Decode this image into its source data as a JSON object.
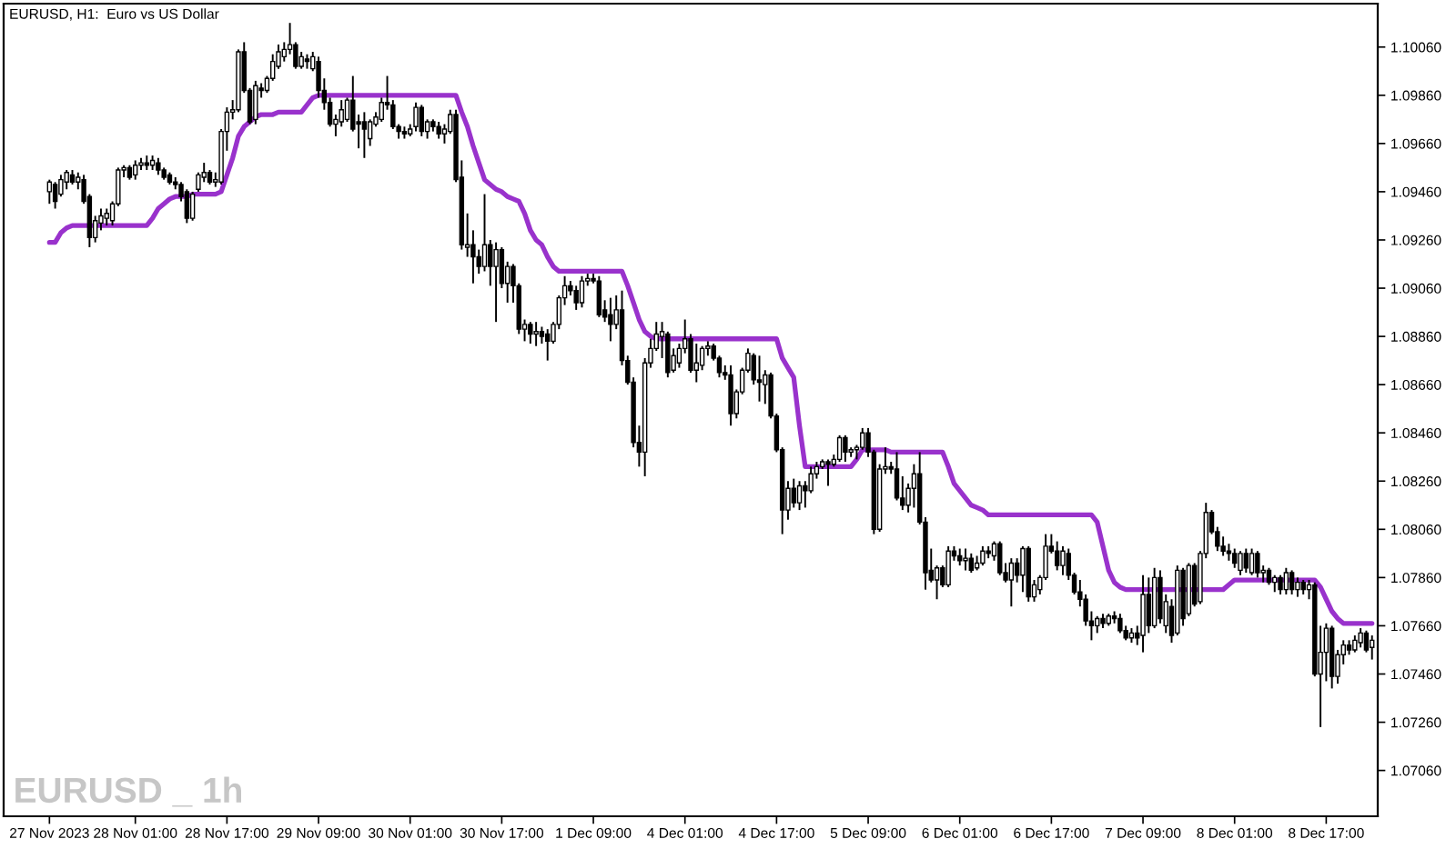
{
  "chart_data": {
    "type": "candlestick",
    "title": "EURUSD, H1:  Euro vs US Dollar",
    "annotations": [
      "EURUSD _ 1h"
    ],
    "categories": [
      "27 Nov 2023",
      null,
      null,
      null,
      null,
      null,
      null,
      null,
      null,
      null,
      null,
      null,
      null,
      null,
      null,
      "28 Nov 01:00",
      null,
      null,
      null,
      null,
      null,
      null,
      null,
      null,
      null,
      null,
      null,
      null,
      null,
      null,
      null,
      "28 Nov 17:00",
      null,
      null,
      null,
      null,
      null,
      null,
      null,
      null,
      null,
      null,
      null,
      null,
      null,
      null,
      null,
      "29 Nov 09:00",
      null,
      null,
      null,
      null,
      null,
      null,
      null,
      null,
      null,
      null,
      null,
      null,
      null,
      null,
      null,
      "30 Nov 01:00",
      null,
      null,
      null,
      null,
      null,
      null,
      null,
      null,
      null,
      null,
      null,
      null,
      null,
      null,
      null,
      "30 Nov 17:00",
      null,
      null,
      null,
      null,
      null,
      null,
      null,
      null,
      null,
      null,
      null,
      null,
      null,
      null,
      null,
      "1 Dec 09:00",
      null,
      null,
      null,
      null,
      null,
      null,
      null,
      null,
      null,
      null,
      null,
      null,
      null,
      null,
      null,
      "4 Dec 01:00",
      null,
      null,
      null,
      null,
      null,
      null,
      null,
      null,
      null,
      null,
      null,
      null,
      null,
      null,
      null,
      "4 Dec 17:00",
      null,
      null,
      null,
      null,
      null,
      null,
      null,
      null,
      null,
      null,
      null,
      null,
      null,
      null,
      null,
      "5 Dec 09:00",
      null,
      null,
      null,
      null,
      null,
      null,
      null,
      null,
      null,
      null,
      null,
      null,
      null,
      null,
      null,
      "6 Dec 01:00",
      null,
      null,
      null,
      null,
      null,
      null,
      null,
      null,
      null,
      null,
      null,
      null,
      null,
      null,
      null,
      "6 Dec 17:00",
      null,
      null,
      null,
      null,
      null,
      null,
      null,
      null,
      null,
      null,
      null,
      null,
      null,
      null,
      null,
      "7 Dec 09:00",
      null,
      null,
      null,
      null,
      null,
      null,
      null,
      null,
      null,
      null,
      null,
      null,
      null,
      null,
      null,
      "8 Dec 01:00",
      null,
      null,
      null,
      null,
      null,
      null,
      null,
      null,
      null,
      null,
      null,
      null,
      null,
      null,
      null,
      "8 Dec 17:00",
      null,
      null,
      null,
      null,
      null,
      null,
      null,
      null
    ],
    "ohlc": [
      [
        1.0946,
        1.0951,
        1.0941,
        1.095
      ],
      [
        1.0949,
        1.095,
        1.0939,
        1.0942
      ],
      [
        1.0945,
        1.0953,
        1.0944,
        1.0951
      ],
      [
        1.095,
        1.0955,
        1.0947,
        1.0954
      ],
      [
        1.0953,
        1.0955,
        1.0949,
        1.095
      ],
      [
        1.095,
        1.0954,
        1.0947,
        1.0952
      ],
      [
        1.0951,
        1.0953,
        1.0941,
        1.0942
      ],
      [
        1.0944,
        1.0945,
        1.0923,
        1.0927
      ],
      [
        1.0927,
        1.0936,
        1.0925,
        1.0934
      ],
      [
        1.0933,
        1.0939,
        1.093,
        1.0936
      ],
      [
        1.0935,
        1.0939,
        1.0932,
        1.0937
      ],
      [
        1.0934,
        1.0942,
        1.0932,
        1.0941
      ],
      [
        1.0941,
        1.0956,
        1.094,
        1.0955
      ],
      [
        1.0955,
        1.0957,
        1.0952,
        1.0956
      ],
      [
        1.0956,
        1.0957,
        1.0951,
        1.0952
      ],
      [
        1.0953,
        1.0959,
        1.0951,
        1.0957
      ],
      [
        1.0957,
        1.096,
        1.0955,
        1.0958
      ],
      [
        1.0958,
        1.0961,
        1.0955,
        1.0957
      ],
      [
        1.0957,
        1.0961,
        1.0955,
        1.0959
      ],
      [
        1.0958,
        1.096,
        1.0953,
        1.0955
      ],
      [
        1.0955,
        1.0956,
        1.0951,
        1.0952
      ],
      [
        1.0953,
        1.0954,
        1.0949,
        1.095
      ],
      [
        1.095,
        1.0952,
        1.0947,
        1.0949
      ],
      [
        1.0949,
        1.095,
        1.0942,
        1.0944
      ],
      [
        1.0946,
        1.0947,
        1.0933,
        1.0935
      ],
      [
        1.0935,
        1.0946,
        1.0934,
        1.0945
      ],
      [
        1.0947,
        1.0954,
        1.0946,
        1.0953
      ],
      [
        1.0952,
        1.0958,
        1.095,
        1.0954
      ],
      [
        1.0954,
        1.0955,
        1.0949,
        1.095
      ],
      [
        1.095,
        1.0954,
        1.0948,
        1.0951
      ],
      [
        1.095,
        1.0972,
        1.0949,
        1.0971
      ],
      [
        1.0971,
        1.0981,
        1.0963,
        1.0979
      ],
      [
        1.0979,
        1.0984,
        1.0976,
        1.098
      ],
      [
        1.098,
        1.1005,
        1.0979,
        1.1004
      ],
      [
        1.1004,
        1.1008,
        1.0987,
        1.0988
      ],
      [
        1.0988,
        1.0989,
        1.0974,
        1.0975
      ],
      [
        1.0976,
        1.0992,
        1.0974,
        1.099
      ],
      [
        1.0989,
        1.0991,
        1.0985,
        1.0988
      ],
      [
        1.0988,
        1.0994,
        1.0987,
        1.0993
      ],
      [
        1.0993,
        1.1003,
        1.0992,
        1.1
      ],
      [
        1.0998,
        1.1007,
        1.0997,
        1.1004
      ],
      [
        1.1002,
        1.1008,
        1.1,
        1.1005
      ],
      [
        1.1005,
        1.1016,
        1.1003,
        1.1007
      ],
      [
        1.1007,
        1.1008,
        1.0997,
        1.0998
      ],
      [
        1.0998,
        1.1004,
        1.0997,
        1.1002
      ],
      [
        1.1001,
        1.1003,
        1.0997,
        1.1
      ],
      [
        1.0997,
        1.1004,
        1.0996,
        1.1002
      ],
      [
        1.1,
        1.1002,
        1.0985,
        1.0988
      ],
      [
        1.0988,
        1.0993,
        1.098,
        1.0983
      ],
      [
        1.0983,
        1.0985,
        1.0973,
        1.0974
      ],
      [
        1.0974,
        1.0978,
        1.0969,
        1.0976
      ],
      [
        1.0975,
        1.0984,
        1.0973,
        1.098
      ],
      [
        1.0976,
        1.0985,
        1.0975,
        1.0984
      ],
      [
        1.0984,
        1.0994,
        1.0971,
        1.0972
      ],
      [
        1.0975,
        1.0978,
        1.0964,
        1.0974
      ],
      [
        1.0975,
        1.0979,
        1.096,
        1.0972
      ],
      [
        1.0968,
        1.0976,
        1.0965,
        1.0975
      ],
      [
        1.0974,
        1.0979,
        1.0973,
        1.0977
      ],
      [
        1.0976,
        1.0985,
        1.0975,
        1.0983
      ],
      [
        1.0983,
        1.0994,
        1.098,
        1.0982
      ],
      [
        1.0982,
        1.0984,
        1.0972,
        1.0973
      ],
      [
        1.0973,
        1.0974,
        1.0968,
        1.0971
      ],
      [
        1.0971,
        1.0973,
        1.0968,
        1.097
      ],
      [
        1.097,
        1.0974,
        1.0969,
        1.0972
      ],
      [
        1.0973,
        1.0983,
        1.0971,
        1.0981
      ],
      [
        1.0981,
        1.0982,
        1.0969,
        1.0971
      ],
      [
        1.0971,
        1.0976,
        1.0968,
        1.0975
      ],
      [
        1.0975,
        1.0976,
        1.0971,
        1.0973
      ],
      [
        1.0973,
        1.0975,
        1.0968,
        1.097
      ],
      [
        1.097,
        1.0974,
        1.0966,
        1.0972
      ],
      [
        1.0971,
        1.098,
        1.097,
        1.0978
      ],
      [
        1.0978,
        1.098,
        1.095,
        1.0951
      ],
      [
        1.0952,
        1.0959,
        1.0922,
        1.0924
      ],
      [
        1.0923,
        1.0937,
        1.0919,
        1.0924
      ],
      [
        1.0924,
        1.093,
        1.0908,
        1.0919
      ],
      [
        1.0919,
        1.0922,
        1.0912,
        1.0915
      ],
      [
        1.0915,
        1.0945,
        1.0913,
        1.0924
      ],
      [
        1.0924,
        1.0926,
        1.0907,
        1.0915
      ],
      [
        1.0915,
        1.0925,
        1.0892,
        1.0922
      ],
      [
        1.0922,
        1.0923,
        1.0906,
        1.0908
      ],
      [
        1.0908,
        1.0917,
        1.09,
        1.0915
      ],
      [
        1.0915,
        1.0916,
        1.09,
        1.0907
      ],
      [
        1.0907,
        1.0908,
        1.0887,
        1.0889
      ],
      [
        1.0889,
        1.0893,
        1.0884,
        1.0891
      ],
      [
        1.0891,
        1.0892,
        1.0883,
        1.0887
      ],
      [
        1.0887,
        1.0892,
        1.0882,
        1.0888
      ],
      [
        1.0888,
        1.089,
        1.0883,
        1.0886
      ],
      [
        1.0887,
        1.0889,
        1.0876,
        1.0884
      ],
      [
        1.0884,
        1.0892,
        1.0883,
        1.0891
      ],
      [
        1.0891,
        1.0903,
        1.0889,
        1.0902
      ],
      [
        1.0902,
        1.0911,
        1.0899,
        1.0907
      ],
      [
        1.0907,
        1.0909,
        1.0903,
        1.0905
      ],
      [
        1.0905,
        1.0907,
        1.0897,
        1.09
      ],
      [
        1.09,
        1.0911,
        1.0898,
        1.0909
      ],
      [
        1.0909,
        1.0912,
        1.0907,
        1.091
      ],
      [
        1.091,
        1.0912,
        1.0908,
        1.0909
      ],
      [
        1.0909,
        1.0911,
        1.0894,
        1.0895
      ],
      [
        1.0897,
        1.0901,
        1.0892,
        1.0894
      ],
      [
        1.0895,
        1.0902,
        1.0884,
        1.0891
      ],
      [
        1.0891,
        1.0903,
        1.0889,
        1.0897
      ],
      [
        1.0897,
        1.0905,
        1.0874,
        1.0876
      ],
      [
        1.0876,
        1.0878,
        1.0866,
        1.0867
      ],
      [
        1.0867,
        1.0869,
        1.084,
        1.0842
      ],
      [
        1.0842,
        1.0849,
        1.0832,
        1.0838
      ],
      [
        1.0838,
        1.0877,
        1.0828,
        1.0875
      ],
      [
        1.0875,
        1.0885,
        1.0873,
        1.0881
      ],
      [
        1.0881,
        1.0892,
        1.088,
        1.0887
      ],
      [
        1.0886,
        1.0892,
        1.0877,
        1.0888
      ],
      [
        1.0887,
        1.0888,
        1.0869,
        1.0871
      ],
      [
        1.0872,
        1.0881,
        1.0871,
        1.0878
      ],
      [
        1.0875,
        1.0883,
        1.0873,
        1.0881
      ],
      [
        1.0881,
        1.0893,
        1.0879,
        1.0885
      ],
      [
        1.0885,
        1.0887,
        1.0871,
        1.0872
      ],
      [
        1.0872,
        1.0883,
        1.0867,
        1.0875
      ],
      [
        1.0874,
        1.0882,
        1.0872,
        1.0881
      ],
      [
        1.0881,
        1.0884,
        1.0878,
        1.0882
      ],
      [
        1.0882,
        1.0883,
        1.0876,
        1.0877
      ],
      [
        1.0877,
        1.0878,
        1.0869,
        1.0871
      ],
      [
        1.0871,
        1.0874,
        1.0868,
        1.087
      ],
      [
        1.087,
        1.0874,
        1.0849,
        1.0854
      ],
      [
        1.0854,
        1.0864,
        1.0852,
        1.0863
      ],
      [
        1.0863,
        1.0873,
        1.0862,
        1.0872
      ],
      [
        1.0872,
        1.0881,
        1.0871,
        1.0879
      ],
      [
        1.0878,
        1.0879,
        1.0866,
        1.0868
      ],
      [
        1.0868,
        1.0878,
        1.0859,
        1.0867
      ],
      [
        1.0866,
        1.0872,
        1.0858,
        1.087
      ],
      [
        1.087,
        1.0871,
        1.0852,
        1.0853
      ],
      [
        1.0853,
        1.0854,
        1.0838,
        1.0839
      ],
      [
        1.0839,
        1.084,
        1.0804,
        1.0814
      ],
      [
        1.0814,
        1.0826,
        1.081,
        1.0823
      ],
      [
        1.0823,
        1.0827,
        1.0815,
        1.0817
      ],
      [
        1.0817,
        1.0826,
        1.0814,
        1.0824
      ],
      [
        1.0824,
        1.0826,
        1.0815,
        1.0822
      ],
      [
        1.0822,
        1.0832,
        1.0821,
        1.0829
      ],
      [
        1.0829,
        1.0834,
        1.0827,
        1.0832
      ],
      [
        1.0832,
        1.0835,
        1.0831,
        1.0834
      ],
      [
        1.0834,
        1.0835,
        1.0824,
        1.0833
      ],
      [
        1.0833,
        1.0837,
        1.0832,
        1.0835
      ],
      [
        1.0835,
        1.0845,
        1.0834,
        1.0844
      ],
      [
        1.0844,
        1.0845,
        1.0834,
        1.0838
      ],
      [
        1.0838,
        1.084,
        1.0836,
        1.0839
      ],
      [
        1.0839,
        1.0841,
        1.0835,
        1.084
      ],
      [
        1.084,
        1.0848,
        1.0839,
        1.0846
      ],
      [
        1.0846,
        1.0848,
        1.0836,
        1.0838
      ],
      [
        1.0838,
        1.0839,
        1.0804,
        1.0806
      ],
      [
        1.0806,
        1.0833,
        1.0805,
        1.0831
      ],
      [
        1.0831,
        1.084,
        1.0829,
        1.0832
      ],
      [
        1.0832,
        1.0834,
        1.0829,
        1.0831
      ],
      [
        1.0831,
        1.0838,
        1.0818,
        1.0819
      ],
      [
        1.0819,
        1.0828,
        1.0814,
        1.0816
      ],
      [
        1.0816,
        1.0825,
        1.0813,
        1.0823
      ],
      [
        1.0823,
        1.0833,
        1.0815,
        1.0829
      ],
      [
        1.0829,
        1.0838,
        1.0808,
        1.0809
      ],
      [
        1.0809,
        1.0811,
        1.0781,
        1.0788
      ],
      [
        1.0789,
        1.0798,
        1.0784,
        1.0785
      ],
      [
        1.0785,
        1.0791,
        1.0777,
        1.079
      ],
      [
        1.079,
        1.0791,
        1.0782,
        1.0783
      ],
      [
        1.0783,
        1.0799,
        1.0782,
        1.0797
      ],
      [
        1.0797,
        1.0799,
        1.0793,
        1.0795
      ],
      [
        1.0795,
        1.0798,
        1.0791,
        1.0793
      ],
      [
        1.0793,
        1.0798,
        1.0789,
        1.0794
      ],
      [
        1.0794,
        1.0796,
        1.0788,
        1.0789
      ],
      [
        1.079,
        1.0795,
        1.0789,
        1.0792
      ],
      [
        1.0792,
        1.0799,
        1.0791,
        1.0797
      ],
      [
        1.0797,
        1.0799,
        1.0794,
        1.0796
      ],
      [
        1.0795,
        1.0801,
        1.0793,
        1.08
      ],
      [
        1.08,
        1.0801,
        1.0787,
        1.0788
      ],
      [
        1.0788,
        1.0792,
        1.0784,
        1.0785
      ],
      [
        1.0785,
        1.0794,
        1.0774,
        1.0792
      ],
      [
        1.0792,
        1.0794,
        1.0784,
        1.0787
      ],
      [
        1.0787,
        1.0799,
        1.078,
        1.0798
      ],
      [
        1.0798,
        1.0799,
        1.0776,
        1.0778
      ],
      [
        1.0778,
        1.0785,
        1.0776,
        1.0783
      ],
      [
        1.0781,
        1.0787,
        1.0779,
        1.0786
      ],
      [
        1.0786,
        1.0804,
        1.0785,
        1.0799
      ],
      [
        1.0799,
        1.0804,
        1.0796,
        1.0797
      ],
      [
        1.0797,
        1.0801,
        1.0789,
        1.0791
      ],
      [
        1.0791,
        1.0799,
        1.0787,
        1.0797
      ],
      [
        1.0796,
        1.0798,
        1.0785,
        1.0787
      ],
      [
        1.0787,
        1.0788,
        1.0779,
        1.078
      ],
      [
        1.078,
        1.0785,
        1.0774,
        1.0777
      ],
      [
        1.0777,
        1.0779,
        1.0766,
        1.0768
      ],
      [
        1.0768,
        1.0772,
        1.076,
        1.0766
      ],
      [
        1.0766,
        1.077,
        1.0763,
        1.0769
      ],
      [
        1.0769,
        1.0771,
        1.0765,
        1.0767
      ],
      [
        1.0767,
        1.0771,
        1.0766,
        1.077
      ],
      [
        1.077,
        1.0772,
        1.0767,
        1.0769
      ],
      [
        1.0769,
        1.0771,
        1.0763,
        1.0764
      ],
      [
        1.0764,
        1.0766,
        1.076,
        1.0761
      ],
      [
        1.0761,
        1.0765,
        1.0759,
        1.0763
      ],
      [
        1.0763,
        1.0766,
        1.0758,
        1.0761
      ],
      [
        1.0762,
        1.0787,
        1.0755,
        1.0779
      ],
      [
        1.0779,
        1.0786,
        1.0763,
        1.0766
      ],
      [
        1.0766,
        1.079,
        1.0765,
        1.0786
      ],
      [
        1.0786,
        1.0789,
        1.0767,
        1.0769
      ],
      [
        1.0766,
        1.0779,
        1.0763,
        1.0776
      ],
      [
        1.0774,
        1.0777,
        1.0759,
        1.0762
      ],
      [
        1.0763,
        1.0791,
        1.0762,
        1.0789
      ],
      [
        1.0789,
        1.079,
        1.0766,
        1.0769
      ],
      [
        1.0771,
        1.0792,
        1.077,
        1.0791
      ],
      [
        1.0791,
        1.0792,
        1.0774,
        1.0775
      ],
      [
        1.0776,
        1.0797,
        1.0775,
        1.0796
      ],
      [
        1.0796,
        1.0817,
        1.0794,
        1.0813
      ],
      [
        1.0813,
        1.0814,
        1.0804,
        1.0805
      ],
      [
        1.0805,
        1.0807,
        1.0797,
        1.0799
      ],
      [
        1.0799,
        1.0803,
        1.0795,
        1.0797
      ],
      [
        1.0797,
        1.08,
        1.0793,
        1.0796
      ],
      [
        1.0796,
        1.0798,
        1.079,
        1.0792
      ],
      [
        1.0789,
        1.0797,
        1.0787,
        1.0796
      ],
      [
        1.0796,
        1.0798,
        1.0788,
        1.079
      ],
      [
        1.0788,
        1.0798,
        1.0787,
        1.0796
      ],
      [
        1.0796,
        1.0797,
        1.0786,
        1.0788
      ],
      [
        1.0788,
        1.0791,
        1.0784,
        1.0789
      ],
      [
        1.0789,
        1.079,
        1.0783,
        1.0784
      ],
      [
        1.0784,
        1.0787,
        1.078,
        1.0786
      ],
      [
        1.0786,
        1.0787,
        1.0779,
        1.0781
      ],
      [
        1.0781,
        1.079,
        1.0779,
        1.0788
      ],
      [
        1.0788,
        1.0789,
        1.0779,
        1.0781
      ],
      [
        1.0781,
        1.0786,
        1.0778,
        1.0784
      ],
      [
        1.0784,
        1.0785,
        1.0779,
        1.0781
      ],
      [
        1.0781,
        1.0785,
        1.0777,
        1.0783
      ],
      [
        1.0783,
        1.0784,
        1.0745,
        1.0746
      ],
      [
        1.0746,
        1.0766,
        1.0724,
        1.0755
      ],
      [
        1.0755,
        1.0767,
        1.0743,
        1.0765
      ],
      [
        1.0765,
        1.0766,
        1.074,
        1.0745
      ],
      [
        1.0745,
        1.0756,
        1.0742,
        1.0754
      ],
      [
        1.0754,
        1.076,
        1.075,
        1.0758
      ],
      [
        1.0758,
        1.076,
        1.0754,
        1.0756
      ],
      [
        1.0756,
        1.0762,
        1.0755,
        1.076
      ],
      [
        1.0759,
        1.0765,
        1.0757,
        1.0763
      ],
      [
        1.0763,
        1.0764,
        1.0755,
        1.0756
      ],
      [
        1.0757,
        1.0762,
        1.0752,
        1.076
      ]
    ],
    "series": [
      {
        "type": "line",
        "color": "#9932cc",
        "values": [
          1.0925,
          1.0925,
          1.0929,
          1.0931,
          1.0932,
          1.0932,
          1.0932,
          1.0932,
          1.0932,
          1.0932,
          1.0932,
          1.0932,
          1.0932,
          1.0932,
          1.0932,
          1.0932,
          1.0932,
          1.0932,
          1.0935,
          1.0939,
          1.0941,
          1.0943,
          1.0944,
          1.0944,
          1.0944,
          1.0945,
          1.0945,
          1.0945,
          1.0945,
          1.0945,
          1.0946,
          1.0953,
          1.096,
          1.0969,
          1.0973,
          1.0975,
          1.0977,
          1.0978,
          1.0978,
          1.0978,
          1.0979,
          1.0979,
          1.0979,
          1.0979,
          1.0979,
          1.0982,
          1.0985,
          1.0986,
          1.0986,
          1.0986,
          1.0986,
          1.0986,
          1.0986,
          1.0986,
          1.0986,
          1.0986,
          1.0986,
          1.0986,
          1.0986,
          1.0986,
          1.0986,
          1.0986,
          1.0986,
          1.0986,
          1.0986,
          1.0986,
          1.0986,
          1.0986,
          1.0986,
          1.0986,
          1.0986,
          1.0986,
          1.0979,
          1.0973,
          1.0965,
          1.0958,
          1.0951,
          1.0949,
          1.0947,
          1.0946,
          1.0944,
          1.0943,
          1.0942,
          1.0937,
          1.093,
          1.0926,
          1.0924,
          1.0919,
          1.0915,
          1.0913,
          1.0913,
          1.0913,
          1.0913,
          1.0913,
          1.0913,
          1.0913,
          1.0913,
          1.0913,
          1.0913,
          1.0913,
          1.0913,
          1.0907,
          1.09,
          1.0893,
          1.0888,
          1.0886,
          1.0885,
          1.0885,
          1.0885,
          1.0885,
          1.0885,
          1.0885,
          1.0885,
          1.0885,
          1.0885,
          1.0885,
          1.0885,
          1.0885,
          1.0885,
          1.0885,
          1.0885,
          1.0885,
          1.0885,
          1.0885,
          1.0885,
          1.0885,
          1.0885,
          1.0885,
          1.0877,
          1.0873,
          1.0869,
          1.0849,
          1.0832,
          1.0832,
          1.0832,
          1.0832,
          1.0832,
          1.0832,
          1.0832,
          1.0832,
          1.0832,
          1.0835,
          1.0839,
          1.0839,
          1.0839,
          1.0839,
          1.0839,
          1.0838,
          1.0838,
          1.0838,
          1.0838,
          1.0838,
          1.0838,
          1.0838,
          1.0838,
          1.0838,
          1.0838,
          1.0832,
          1.0825,
          1.0822,
          1.0819,
          1.0816,
          1.0815,
          1.0814,
          1.0812,
          1.0812,
          1.0812,
          1.0812,
          1.0812,
          1.0812,
          1.0812,
          1.0812,
          1.0812,
          1.0812,
          1.0812,
          1.0812,
          1.0812,
          1.0812,
          1.0812,
          1.0812,
          1.0812,
          1.0812,
          1.0812,
          1.0809,
          1.0799,
          1.0789,
          1.0784,
          1.0782,
          1.0781,
          1.0781,
          1.0781,
          1.0781,
          1.0781,
          1.0781,
          1.0781,
          1.0781,
          1.0781,
          1.0781,
          1.0781,
          1.0781,
          1.0781,
          1.0781,
          1.0781,
          1.0781,
          1.0781,
          1.0781,
          1.0783,
          1.0785,
          1.0785,
          1.0785,
          1.0785,
          1.0785,
          1.0785,
          1.0785,
          1.0785,
          1.0785,
          1.0785,
          1.0785,
          1.0785,
          1.0785,
          1.0785,
          1.0785,
          1.0782,
          1.0777,
          1.0772,
          1.0769,
          1.0767,
          1.0767,
          1.0767,
          1.0767,
          1.0767,
          1.0767
        ]
      }
    ],
    "ylim": [
      1.0687,
      1.1024
    ],
    "yticks": [
      {
        "value": 1.0706,
        "label": "1.07060"
      },
      {
        "value": 1.0726,
        "label": "1.07260"
      },
      {
        "value": 1.0746,
        "label": "1.07460"
      },
      {
        "value": 1.0766,
        "label": "1.07660"
      },
      {
        "value": 1.0786,
        "label": "1.07860"
      },
      {
        "value": 1.0806,
        "label": "1.08060"
      },
      {
        "value": 1.0826,
        "label": "1.08260"
      },
      {
        "value": 1.0846,
        "label": "1.08460"
      },
      {
        "value": 1.0866,
        "label": "1.08660"
      },
      {
        "value": 1.0886,
        "label": "1.08860"
      },
      {
        "value": 1.0906,
        "label": "1.09060"
      },
      {
        "value": 1.0926,
        "label": "1.09260"
      },
      {
        "value": 1.0946,
        "label": "1.09460"
      },
      {
        "value": 1.0966,
        "label": "1.09660"
      },
      {
        "value": 1.0986,
        "label": "1.09860"
      },
      {
        "value": 1.1006,
        "label": "1.10060"
      }
    ]
  }
}
